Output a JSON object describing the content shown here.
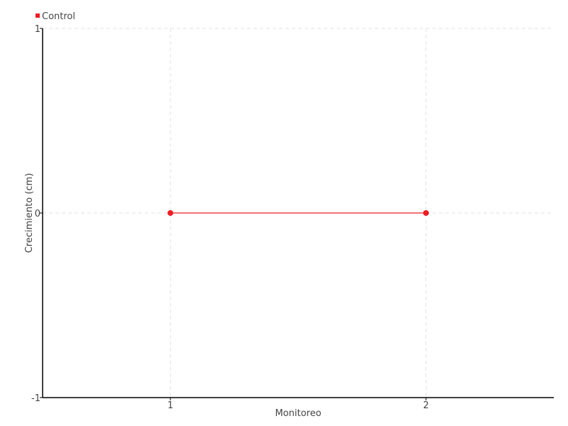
{
  "chart_data": {
    "type": "line",
    "title": "",
    "xlabel": "Monitoreo",
    "ylabel": "Crecimiento (cm)",
    "xlim": [
      0.5,
      2.5
    ],
    "ylim": [
      -1,
      1
    ],
    "x_ticks": [
      "1",
      "2"
    ],
    "y_ticks": [
      "1",
      "0",
      "-1"
    ],
    "grid": true,
    "legend_position": "top-left",
    "series": [
      {
        "name": "Control",
        "color": "#ee1c25",
        "x": [
          1,
          2
        ],
        "y": [
          0,
          0
        ]
      }
    ]
  }
}
